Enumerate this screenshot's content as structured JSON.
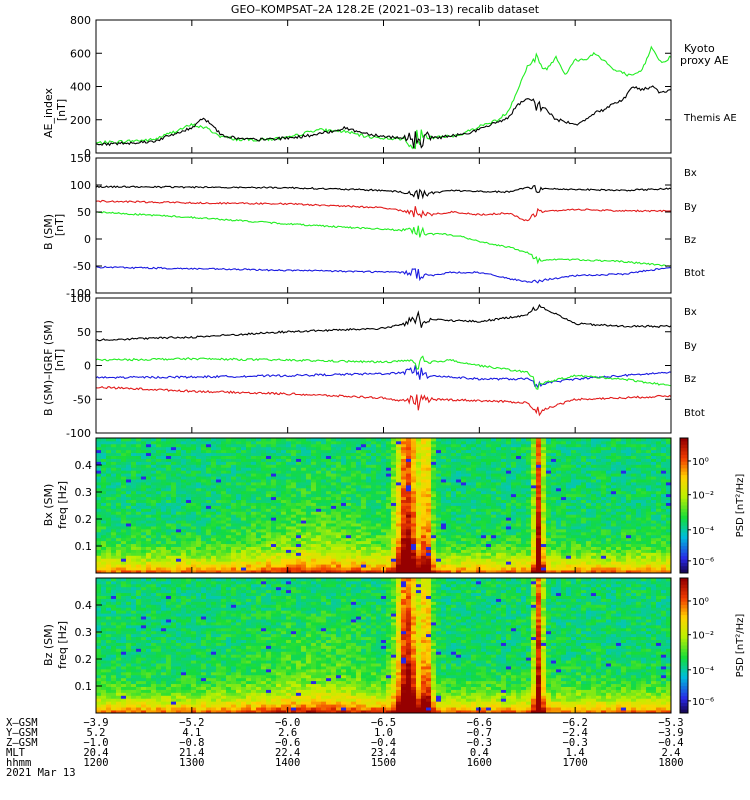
{
  "title": "GEO–KOMPSAT–2A 128.2E (2021–03–13) recalib dataset",
  "colors": {
    "black": "#000000",
    "green": "#22ee22",
    "red": "#e21b1b",
    "blue": "#1a1ae0"
  },
  "chart_data": [
    {
      "type": "line",
      "id": "ae",
      "ylabel": "AE_index",
      "yunit": "[nT]",
      "ylim": [
        0,
        800
      ],
      "yticks": [
        0,
        200,
        400,
        600,
        800
      ],
      "x_hours": [
        12,
        18
      ],
      "series": [
        {
          "name": "Kyoto proxy AE",
          "color": "#22ee22",
          "x": [
            12.0,
            12.3,
            12.6,
            13.0,
            13.15,
            13.3,
            13.5,
            13.7,
            14.0,
            14.3,
            14.6,
            14.8,
            15.0,
            15.2,
            15.4,
            15.6,
            15.8,
            16.0,
            16.2,
            16.3,
            16.4,
            16.5,
            16.6,
            16.7,
            16.8,
            16.9,
            17.0,
            17.1,
            17.2,
            17.3,
            17.4,
            17.5,
            17.6,
            17.7,
            17.8,
            17.9,
            18.0
          ],
          "y": [
            60,
            70,
            80,
            170,
            150,
            100,
            80,
            80,
            90,
            140,
            130,
            100,
            90,
            85,
            90,
            95,
            110,
            160,
            200,
            250,
            380,
            520,
            560,
            500,
            580,
            470,
            560,
            560,
            600,
            560,
            500,
            480,
            460,
            500,
            640,
            540,
            580
          ]
        },
        {
          "name": "Themis AE",
          "color": "#000000",
          "x": [
            12.0,
            12.3,
            12.6,
            13.0,
            13.1,
            13.2,
            13.3,
            13.5,
            13.7,
            14.0,
            14.3,
            14.6,
            14.8,
            15.0,
            15.2,
            15.4,
            15.6,
            15.8,
            16.0,
            16.2,
            16.3,
            16.4,
            16.5,
            16.6,
            16.7,
            16.8,
            16.9,
            17.0,
            17.1,
            17.2,
            17.3,
            17.4,
            17.5,
            17.6,
            17.7,
            17.8,
            17.9,
            18.0
          ],
          "y": [
            50,
            60,
            70,
            150,
            210,
            180,
            110,
            85,
            80,
            90,
            110,
            150,
            120,
            100,
            90,
            90,
            95,
            110,
            140,
            190,
            210,
            290,
            320,
            300,
            260,
            200,
            190,
            170,
            200,
            240,
            260,
            300,
            320,
            400,
            380,
            400,
            360,
            380
          ]
        }
      ]
    },
    {
      "type": "line",
      "id": "b_sm",
      "ylabel": "B (SM)",
      "yunit": "[nT]",
      "ylim": [
        -100,
        150
      ],
      "yticks": [
        -100,
        -50,
        0,
        50,
        100,
        150
      ],
      "series": [
        {
          "name": "Bx",
          "color": "#1a1ae0",
          "x": [
            12,
            14,
            15.3,
            15.5,
            15.7,
            16,
            16.5,
            17,
            17.5,
            18
          ],
          "y": [
            -52,
            -58,
            -62,
            -68,
            -62,
            -62,
            -80,
            -68,
            -65,
            -52
          ]
        },
        {
          "name": "By",
          "color": "#22ee22",
          "x": [
            12,
            13,
            14,
            15.3,
            15.5,
            15.6,
            15.8,
            16,
            16.3,
            16.5,
            16.6,
            17,
            17.5,
            18
          ],
          "y": [
            50,
            40,
            28,
            15,
            8,
            10,
            5,
            -5,
            -15,
            -25,
            -38,
            -38,
            -42,
            -50
          ]
        },
        {
          "name": "Bz",
          "color": "#e21b1b",
          "x": [
            12,
            13,
            14,
            15,
            15.3,
            15.5,
            15.7,
            16,
            16.3,
            16.5,
            16.6,
            17,
            17.5,
            18
          ],
          "y": [
            70,
            67,
            65,
            58,
            50,
            45,
            50,
            45,
            48,
            33,
            50,
            55,
            52,
            52
          ]
        },
        {
          "name": "Btot",
          "color": "#000000",
          "x": [
            12,
            13,
            14,
            15,
            15.3,
            15.5,
            15.7,
            16,
            16.3,
            16.5,
            16.6,
            17,
            17.5,
            18
          ],
          "y": [
            97,
            96,
            95,
            90,
            85,
            85,
            90,
            88,
            87,
            95,
            93,
            92,
            90,
            93
          ]
        }
      ]
    },
    {
      "type": "line",
      "id": "b_sm_igrf",
      "ylabel": "B (SM)–IGRF (SM)",
      "yunit": "[nT]",
      "ylim": [
        -100,
        100
      ],
      "yticks": [
        -100,
        -50,
        0,
        50,
        100
      ],
      "series": [
        {
          "name": "Bx",
          "color": "#1a1ae0",
          "x": [
            12,
            13,
            14,
            15,
            15.3,
            15.5,
            16,
            16.5,
            16.6,
            17,
            17.5,
            18
          ],
          "y": [
            -18,
            -17,
            -15,
            -12,
            -10,
            -15,
            -20,
            -20,
            -28,
            -20,
            -15,
            -10
          ]
        },
        {
          "name": "By",
          "color": "#22ee22",
          "x": [
            12,
            13,
            14,
            15,
            15.3,
            15.5,
            15.7,
            16,
            16.5,
            16.6,
            17,
            17.5,
            18
          ],
          "y": [
            8,
            10,
            8,
            5,
            8,
            5,
            8,
            0,
            -10,
            -28,
            -15,
            -20,
            -30
          ]
        },
        {
          "name": "Bz",
          "color": "#e21b1b",
          "x": [
            12,
            13,
            14,
            15,
            15.3,
            15.5,
            16,
            16.5,
            16.6,
            17,
            17.5,
            18
          ],
          "y": [
            -32,
            -38,
            -42,
            -48,
            -55,
            -50,
            -52,
            -55,
            -68,
            -50,
            -48,
            -45
          ]
        },
        {
          "name": "Btot",
          "color": "#000000",
          "x": [
            12,
            13,
            14,
            15,
            15.3,
            15.5,
            16,
            16.5,
            16.6,
            17,
            17.5,
            18
          ],
          "y": [
            38,
            42,
            50,
            55,
            65,
            68,
            65,
            75,
            90,
            62,
            58,
            58
          ]
        }
      ]
    },
    {
      "type": "heatmap",
      "id": "bx_psd",
      "ylabel": "Bx (SM)",
      "freq_label": "freq [Hz]",
      "ylim": [
        0,
        0.5
      ],
      "yticks": [
        0.1,
        0.2,
        0.3,
        0.4
      ],
      "colorbar_label": "PSD [nT²/Hz]",
      "colorbar_ticks": [
        "10⁰",
        "10⁻²",
        "10⁻⁴",
        "10⁻⁶"
      ]
    },
    {
      "type": "heatmap",
      "id": "bz_psd",
      "ylabel": "Bz (SM)",
      "freq_label": "freq [Hz]",
      "ylim": [
        0,
        0.5
      ],
      "yticks": [
        0.1,
        0.2,
        0.3,
        0.4
      ],
      "colorbar_label": "PSD [nT²/Hz]",
      "colorbar_ticks": [
        "10⁰",
        "10⁻²",
        "10⁻⁴",
        "10⁻⁶"
      ]
    }
  ],
  "ephemeris": {
    "rows": [
      {
        "label": "X–GSM",
        "values": [
          "−3.9",
          "−5.2",
          "−6.0",
          "−6.5",
          "−6.6",
          "−6.2",
          "−5.3"
        ]
      },
      {
        "label": "Y–GSM",
        "values": [
          "5.2",
          "4.1",
          "2.6",
          "1.0",
          "−0.7",
          "−2.4",
          "−3.9"
        ]
      },
      {
        "label": "Z–GSM",
        "values": [
          "−1.0",
          "−0.8",
          "−0.6",
          "−0.4",
          "−0.3",
          "−0.3",
          "−0.4"
        ]
      },
      {
        "label": "MLT",
        "values": [
          "20.4",
          "21.4",
          "22.4",
          "23.4",
          "0.4",
          "1.4",
          "2.4"
        ]
      },
      {
        "label": "hhmm",
        "values": [
          "1200",
          "1300",
          "1400",
          "1500",
          "1600",
          "1700",
          "1800"
        ]
      }
    ],
    "date": "2021 Mar 13"
  }
}
